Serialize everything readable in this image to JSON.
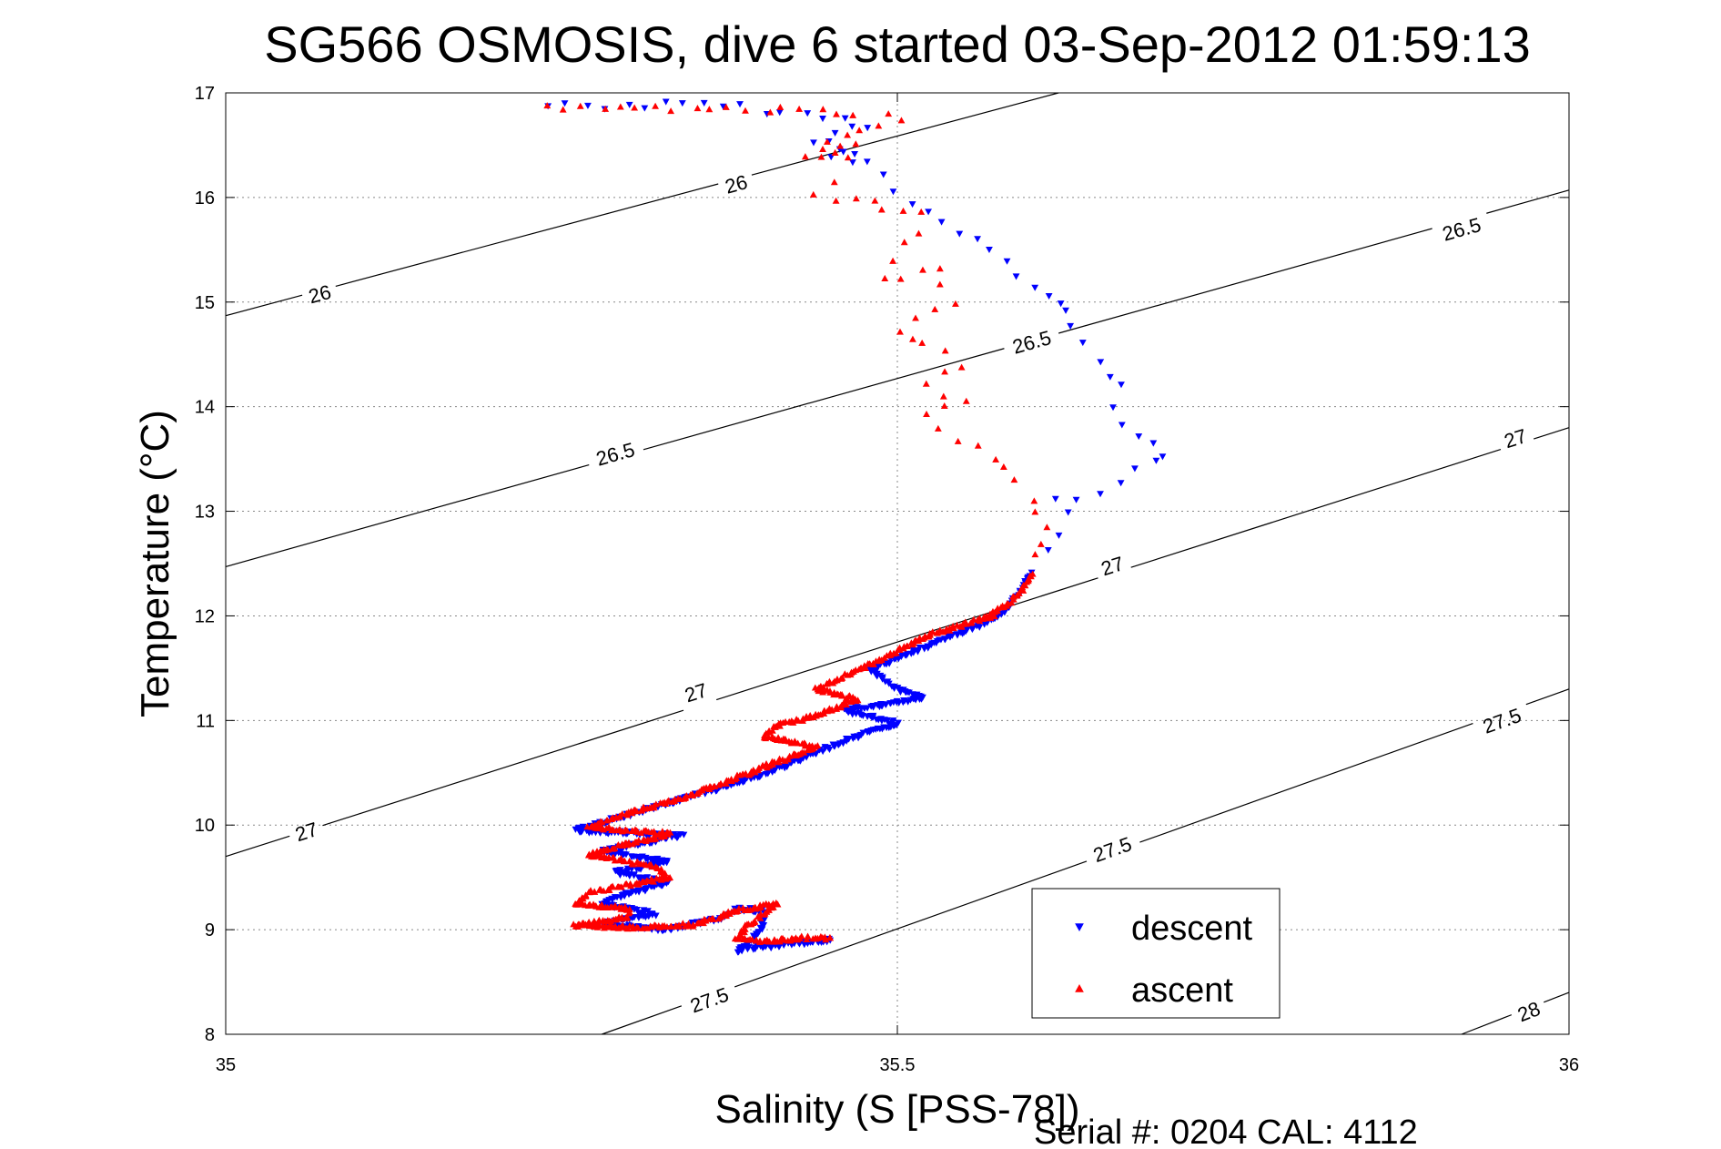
{
  "chart_data": {
    "type": "scatter",
    "title": "SG566 OSMOSIS, dive 6 started 03-Sep-2012 01:59:13",
    "xlabel": "Salinity (S [PSS-78])",
    "ylabel": "Temperature (°C)",
    "footer": "Serial #: 0204  CAL: 4112",
    "xlim": [
      35,
      36
    ],
    "ylim": [
      8,
      17
    ],
    "xticks": [
      35,
      35.5,
      36
    ],
    "xtick_labels": [
      "35",
      "35.5",
      "36"
    ],
    "yticks": [
      8,
      9,
      10,
      11,
      12,
      13,
      14,
      15,
      16,
      17
    ],
    "ytick_labels": [
      "8",
      "9",
      "10",
      "11",
      "12",
      "13",
      "14",
      "15",
      "16",
      "17"
    ],
    "grid": true,
    "legend_position": "bottom-right",
    "colors": {
      "descent": "#0000ff",
      "ascent": "#ff0000",
      "contour": "#000000",
      "grid": "#888888"
    },
    "density_contours": [
      {
        "level": "26",
        "points": [
          [
            35.0,
            14.87
          ],
          [
            35.62,
            17.0
          ]
        ],
        "labels": [
          {
            "text": "26",
            "x": 35.07,
            "y": 15.08
          },
          {
            "text": "26",
            "x": 35.38,
            "y": 16.13
          }
        ]
      },
      {
        "level": "26.5",
        "points": [
          [
            35.0,
            12.47
          ],
          [
            36.0,
            16.07
          ]
        ],
        "labels": [
          {
            "text": "26.5",
            "x": 35.29,
            "y": 13.55
          },
          {
            "text": "26.5",
            "x": 35.6,
            "y": 14.62
          },
          {
            "text": "26.5",
            "x": 35.92,
            "y": 15.7
          }
        ]
      },
      {
        "level": "27",
        "points": [
          [
            35.0,
            9.7
          ],
          [
            36.0,
            13.8
          ]
        ],
        "labels": [
          {
            "text": "27",
            "x": 35.06,
            "y": 9.94
          },
          {
            "text": "27",
            "x": 35.35,
            "y": 11.27
          },
          {
            "text": "27",
            "x": 35.66,
            "y": 12.48
          },
          {
            "text": "27",
            "x": 35.96,
            "y": 13.7
          }
        ]
      },
      {
        "level": "27.5",
        "points": [
          [
            35.28,
            8.0
          ],
          [
            36.0,
            11.3
          ]
        ],
        "labels": [
          {
            "text": "27.5",
            "x": 35.36,
            "y": 8.33
          },
          {
            "text": "27.5",
            "x": 35.66,
            "y": 9.77
          },
          {
            "text": "27.5",
            "x": 35.95,
            "y": 11.0
          }
        ]
      },
      {
        "level": "28",
        "points": [
          [
            35.92,
            8.0
          ],
          [
            36.0,
            8.4
          ]
        ],
        "labels": [
          {
            "text": "28",
            "x": 35.97,
            "y": 8.22
          }
        ]
      }
    ],
    "series": [
      {
        "name": "descent",
        "marker": "triangle-down",
        "path": [
          [
            35.24,
            16.88
          ],
          [
            35.27,
            16.88
          ],
          [
            35.3,
            16.88
          ],
          [
            35.34,
            16.88
          ],
          [
            35.37,
            16.87
          ],
          [
            35.4,
            16.84
          ],
          [
            35.43,
            16.78
          ],
          [
            35.46,
            16.74
          ],
          [
            35.48,
            16.71
          ],
          [
            35.44,
            16.55
          ],
          [
            35.46,
            16.5
          ],
          [
            35.47,
            16.45
          ],
          [
            35.45,
            16.38
          ],
          [
            35.48,
            16.32
          ],
          [
            35.5,
            16.05
          ],
          [
            35.52,
            15.85
          ],
          [
            35.56,
            15.6
          ],
          [
            35.58,
            15.36
          ],
          [
            35.62,
            15.0
          ],
          [
            35.63,
            14.76
          ],
          [
            35.65,
            14.45
          ],
          [
            35.67,
            14.2
          ],
          [
            35.66,
            13.99
          ],
          [
            35.68,
            13.75
          ],
          [
            35.7,
            13.55
          ],
          [
            35.68,
            13.38
          ],
          [
            35.65,
            13.2
          ],
          [
            35.62,
            13.08
          ],
          [
            35.63,
            12.95
          ],
          [
            35.62,
            12.8
          ],
          [
            35.61,
            12.6
          ],
          [
            35.6,
            12.4
          ],
          [
            35.59,
            12.2
          ],
          [
            35.58,
            12.05
          ],
          [
            35.56,
            11.9
          ],
          [
            35.53,
            11.75
          ],
          [
            35.5,
            11.6
          ],
          [
            35.48,
            11.48
          ],
          [
            35.5,
            11.3
          ],
          [
            35.52,
            11.22
          ],
          [
            35.49,
            11.15
          ],
          [
            35.46,
            11.1
          ],
          [
            35.5,
            10.97
          ],
          [
            35.47,
            10.85
          ],
          [
            35.44,
            10.7
          ],
          [
            35.42,
            10.58
          ],
          [
            35.38,
            10.4
          ],
          [
            35.34,
            10.25
          ],
          [
            35.3,
            10.1
          ],
          [
            35.26,
            9.95
          ],
          [
            35.34,
            9.9
          ],
          [
            35.28,
            9.75
          ],
          [
            35.33,
            9.65
          ],
          [
            35.29,
            9.55
          ],
          [
            35.33,
            9.45
          ],
          [
            35.3,
            9.35
          ],
          [
            35.28,
            9.25
          ],
          [
            35.32,
            9.15
          ],
          [
            35.28,
            9.05
          ],
          [
            35.33,
            9.0
          ],
          [
            35.37,
            9.12
          ],
          [
            35.38,
            9.2
          ],
          [
            35.4,
            9.18
          ],
          [
            35.4,
            9.02
          ],
          [
            35.39,
            8.88
          ],
          [
            35.38,
            8.8
          ],
          [
            35.41,
            8.85
          ],
          [
            35.45,
            8.9
          ]
        ]
      },
      {
        "name": "ascent",
        "marker": "triangle-up",
        "path": [
          [
            35.24,
            16.88
          ],
          [
            35.47,
            16.8
          ],
          [
            35.49,
            16.78
          ],
          [
            35.5,
            16.72
          ],
          [
            35.45,
            16.55
          ],
          [
            35.47,
            16.5
          ],
          [
            35.43,
            16.38
          ],
          [
            35.46,
            16.35
          ],
          [
            35.44,
            16.0
          ],
          [
            35.47,
            15.95
          ],
          [
            35.49,
            15.9
          ],
          [
            35.52,
            15.82
          ],
          [
            35.5,
            15.4
          ],
          [
            35.49,
            15.2
          ],
          [
            35.53,
            15.3
          ],
          [
            35.54,
            15.0
          ],
          [
            35.5,
            14.75
          ],
          [
            35.52,
            14.58
          ],
          [
            35.55,
            14.4
          ],
          [
            35.52,
            14.2
          ],
          [
            35.55,
            14.05
          ],
          [
            35.52,
            13.9
          ],
          [
            35.56,
            13.6
          ],
          [
            35.58,
            13.45
          ],
          [
            35.6,
            13.1
          ],
          [
            35.61,
            12.85
          ],
          [
            35.6,
            12.6
          ],
          [
            35.6,
            12.4
          ],
          [
            35.59,
            12.2
          ],
          [
            35.57,
            12.0
          ],
          [
            35.52,
            11.8
          ],
          [
            35.49,
            11.6
          ],
          [
            35.46,
            11.42
          ],
          [
            35.44,
            11.3
          ],
          [
            35.47,
            11.2
          ],
          [
            35.44,
            11.05
          ],
          [
            35.41,
            10.95
          ],
          [
            35.4,
            10.85
          ],
          [
            35.44,
            10.75
          ],
          [
            35.42,
            10.65
          ],
          [
            35.39,
            10.5
          ],
          [
            35.35,
            10.3
          ],
          [
            35.31,
            10.15
          ],
          [
            35.27,
            9.98
          ],
          [
            35.33,
            9.92
          ],
          [
            35.27,
            9.72
          ],
          [
            35.32,
            9.6
          ],
          [
            35.33,
            9.5
          ],
          [
            35.27,
            9.35
          ],
          [
            35.26,
            9.25
          ],
          [
            35.3,
            9.2
          ],
          [
            35.3,
            9.12
          ],
          [
            35.26,
            9.04
          ],
          [
            35.31,
            9.02
          ],
          [
            35.35,
            9.05
          ],
          [
            35.38,
            9.18
          ],
          [
            35.41,
            9.25
          ],
          [
            35.39,
            9.05
          ],
          [
            35.38,
            8.92
          ],
          [
            35.4,
            8.88
          ],
          [
            35.43,
            8.92
          ],
          [
            35.45,
            8.92
          ]
        ]
      }
    ]
  }
}
